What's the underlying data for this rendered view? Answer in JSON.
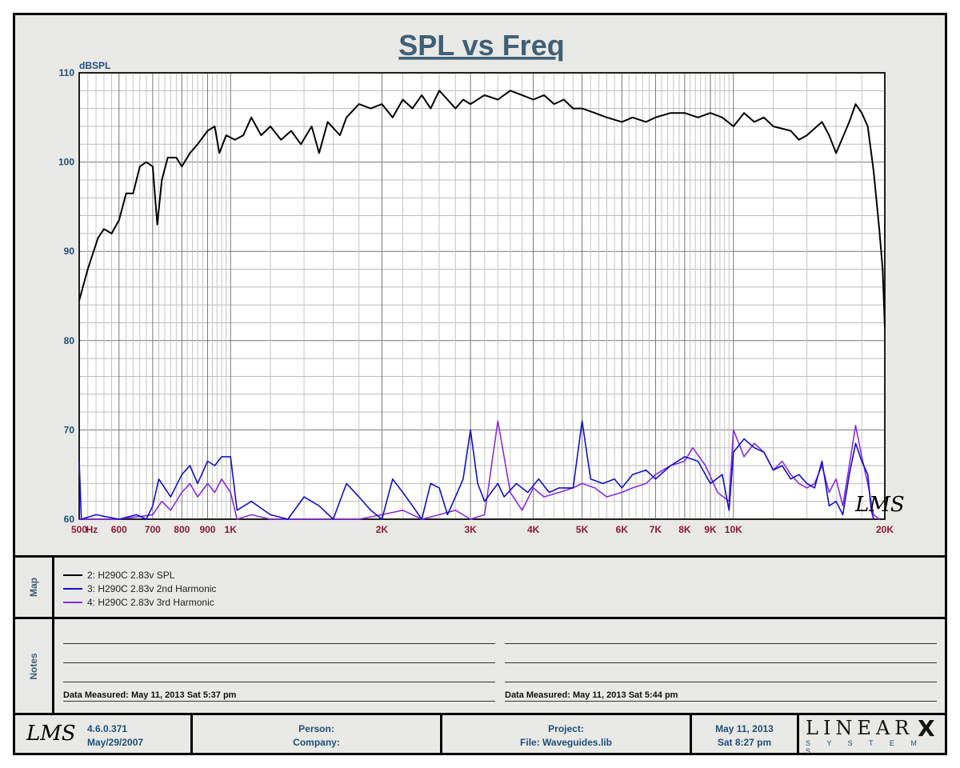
{
  "chart_data": {
    "type": "line",
    "title": "SPL vs Freq",
    "ylabel": "dBSPL",
    "xscale": "log",
    "xlim": [
      500,
      20000
    ],
    "ylim": [
      60,
      110
    ],
    "yticks": [
      60,
      70,
      80,
      90,
      100,
      110
    ],
    "xtick_labels": [
      {
        "f": 500,
        "label": "500"
      },
      {
        "f": 530,
        "label": "Hz"
      },
      {
        "f": 600,
        "label": "600"
      },
      {
        "f": 700,
        "label": "700"
      },
      {
        "f": 800,
        "label": "800"
      },
      {
        "f": 900,
        "label": "900"
      },
      {
        "f": 1000,
        "label": "1K"
      },
      {
        "f": 2000,
        "label": "2K"
      },
      {
        "f": 3000,
        "label": "3K"
      },
      {
        "f": 4000,
        "label": "4K"
      },
      {
        "f": 5000,
        "label": "5K"
      },
      {
        "f": 6000,
        "label": "6K"
      },
      {
        "f": 7000,
        "label": "7K"
      },
      {
        "f": 8000,
        "label": "8K"
      },
      {
        "f": 9000,
        "label": "9K"
      },
      {
        "f": 10000,
        "label": "10K"
      },
      {
        "f": 20000,
        "label": "20K"
      }
    ],
    "grid": true,
    "watermark": "LMS",
    "series": [
      {
        "name": "2: H290C 2.83v SPL",
        "color": "#000000",
        "points": [
          [
            500,
            84.5
          ],
          [
            520,
            88
          ],
          [
            545,
            91.5
          ],
          [
            560,
            92.5
          ],
          [
            580,
            92
          ],
          [
            600,
            93.5
          ],
          [
            620,
            96.5
          ],
          [
            640,
            96.5
          ],
          [
            660,
            99.5
          ],
          [
            680,
            100
          ],
          [
            700,
            99.5
          ],
          [
            715,
            93
          ],
          [
            730,
            98
          ],
          [
            750,
            100.5
          ],
          [
            780,
            100.5
          ],
          [
            800,
            99.5
          ],
          [
            830,
            101
          ],
          [
            860,
            102
          ],
          [
            900,
            103.5
          ],
          [
            930,
            104
          ],
          [
            950,
            101
          ],
          [
            980,
            103
          ],
          [
            1020,
            102.5
          ],
          [
            1060,
            103
          ],
          [
            1100,
            105
          ],
          [
            1150,
            103
          ],
          [
            1200,
            104
          ],
          [
            1260,
            102.5
          ],
          [
            1320,
            103.5
          ],
          [
            1380,
            102
          ],
          [
            1450,
            104
          ],
          [
            1500,
            101
          ],
          [
            1560,
            104.5
          ],
          [
            1650,
            103
          ],
          [
            1700,
            105
          ],
          [
            1800,
            106.5
          ],
          [
            1900,
            106
          ],
          [
            2000,
            106.5
          ],
          [
            2100,
            105
          ],
          [
            2200,
            107
          ],
          [
            2300,
            106
          ],
          [
            2400,
            107.5
          ],
          [
            2500,
            106
          ],
          [
            2600,
            108
          ],
          [
            2700,
            107
          ],
          [
            2800,
            106
          ],
          [
            2900,
            107
          ],
          [
            3000,
            106.5
          ],
          [
            3200,
            107.5
          ],
          [
            3400,
            107
          ],
          [
            3600,
            108
          ],
          [
            3800,
            107.5
          ],
          [
            4000,
            107
          ],
          [
            4200,
            107.5
          ],
          [
            4400,
            106.5
          ],
          [
            4600,
            107
          ],
          [
            4800,
            106
          ],
          [
            5000,
            106
          ],
          [
            5300,
            105.5
          ],
          [
            5600,
            105
          ],
          [
            6000,
            104.5
          ],
          [
            6300,
            105
          ],
          [
            6700,
            104.5
          ],
          [
            7000,
            105
          ],
          [
            7500,
            105.5
          ],
          [
            8000,
            105.5
          ],
          [
            8500,
            105
          ],
          [
            9000,
            105.5
          ],
          [
            9500,
            105
          ],
          [
            10000,
            104
          ],
          [
            10500,
            105.5
          ],
          [
            11000,
            104.5
          ],
          [
            11500,
            105
          ],
          [
            12000,
            104
          ],
          [
            13000,
            103.5
          ],
          [
            13500,
            102.5
          ],
          [
            14000,
            103
          ],
          [
            15000,
            104.5
          ],
          [
            15500,
            103
          ],
          [
            16000,
            101
          ],
          [
            17000,
            104.5
          ],
          [
            17500,
            106.5
          ],
          [
            18000,
            105.5
          ],
          [
            18500,
            104
          ],
          [
            19000,
            99
          ],
          [
            19500,
            92.5
          ],
          [
            19800,
            88
          ],
          [
            20000,
            81.5
          ]
        ]
      },
      {
        "name": "3: H290C 2.83v 2nd Harmonic",
        "color": "#1010d0",
        "points": [
          [
            500,
            66.5
          ],
          [
            505,
            60
          ],
          [
            540,
            60.5
          ],
          [
            600,
            60
          ],
          [
            650,
            60.5
          ],
          [
            680,
            60
          ],
          [
            700,
            61.5
          ],
          [
            720,
            64.5
          ],
          [
            760,
            62.5
          ],
          [
            800,
            65
          ],
          [
            830,
            66
          ],
          [
            860,
            64
          ],
          [
            900,
            66.5
          ],
          [
            930,
            66
          ],
          [
            960,
            67
          ],
          [
            1000,
            67
          ],
          [
            1030,
            61
          ],
          [
            1100,
            62
          ],
          [
            1200,
            60.5
          ],
          [
            1300,
            60
          ],
          [
            1400,
            62.5
          ],
          [
            1500,
            61.5
          ],
          [
            1600,
            60
          ],
          [
            1700,
            64
          ],
          [
            1800,
            62.5
          ],
          [
            1900,
            61
          ],
          [
            2000,
            60
          ],
          [
            2100,
            64.5
          ],
          [
            2200,
            63
          ],
          [
            2300,
            61.5
          ],
          [
            2400,
            60
          ],
          [
            2500,
            64
          ],
          [
            2600,
            63.5
          ],
          [
            2700,
            60.5
          ],
          [
            2800,
            62.5
          ],
          [
            2900,
            64.5
          ],
          [
            3000,
            70
          ],
          [
            3100,
            64
          ],
          [
            3200,
            62
          ],
          [
            3400,
            64
          ],
          [
            3500,
            62.5
          ],
          [
            3700,
            64
          ],
          [
            3900,
            63
          ],
          [
            4100,
            64.5
          ],
          [
            4300,
            63
          ],
          [
            4500,
            63.5
          ],
          [
            4800,
            63.5
          ],
          [
            5000,
            71
          ],
          [
            5200,
            64.5
          ],
          [
            5500,
            64
          ],
          [
            5800,
            64.5
          ],
          [
            6000,
            63.5
          ],
          [
            6300,
            65
          ],
          [
            6700,
            65.5
          ],
          [
            7000,
            64.5
          ],
          [
            7500,
            66
          ],
          [
            8000,
            67
          ],
          [
            8500,
            66.5
          ],
          [
            9000,
            64
          ],
          [
            9500,
            65
          ],
          [
            9800,
            61
          ],
          [
            10000,
            67.5
          ],
          [
            10500,
            69
          ],
          [
            11000,
            68
          ],
          [
            11500,
            67.5
          ],
          [
            12000,
            65.5
          ],
          [
            12500,
            66
          ],
          [
            13000,
            64.5
          ],
          [
            13500,
            65
          ],
          [
            14000,
            64
          ],
          [
            14500,
            63.5
          ],
          [
            15000,
            66.5
          ],
          [
            15500,
            61.5
          ],
          [
            16000,
            62
          ],
          [
            16500,
            60.5
          ],
          [
            17000,
            65
          ],
          [
            17500,
            68.5
          ],
          [
            18000,
            66.5
          ],
          [
            18500,
            65
          ],
          [
            18800,
            61
          ],
          [
            19000,
            60
          ]
        ]
      },
      {
        "name": "4: H290C 2.83v 3rd Harmonic",
        "color": "#8a2be2",
        "points": [
          [
            500,
            60
          ],
          [
            600,
            60
          ],
          [
            700,
            60.5
          ],
          [
            730,
            62
          ],
          [
            760,
            61
          ],
          [
            800,
            63
          ],
          [
            830,
            64
          ],
          [
            860,
            62.5
          ],
          [
            900,
            64
          ],
          [
            930,
            63
          ],
          [
            960,
            64.5
          ],
          [
            1000,
            63
          ],
          [
            1030,
            60
          ],
          [
            1100,
            60.5
          ],
          [
            1200,
            60
          ],
          [
            1400,
            60
          ],
          [
            1600,
            60
          ],
          [
            1800,
            60
          ],
          [
            2000,
            60.5
          ],
          [
            2200,
            61
          ],
          [
            2400,
            60
          ],
          [
            2600,
            60.5
          ],
          [
            2800,
            61
          ],
          [
            3000,
            60
          ],
          [
            3200,
            60.5
          ],
          [
            3400,
            71
          ],
          [
            3600,
            63
          ],
          [
            3800,
            61
          ],
          [
            4000,
            63.5
          ],
          [
            4200,
            62.5
          ],
          [
            4500,
            63
          ],
          [
            4800,
            63.5
          ],
          [
            5000,
            64
          ],
          [
            5300,
            63.5
          ],
          [
            5600,
            62.5
          ],
          [
            6000,
            63
          ],
          [
            6300,
            63.5
          ],
          [
            6700,
            64
          ],
          [
            7000,
            65
          ],
          [
            7500,
            66
          ],
          [
            8000,
            66.5
          ],
          [
            8300,
            68
          ],
          [
            8800,
            66
          ],
          [
            9300,
            63
          ],
          [
            9800,
            62
          ],
          [
            10000,
            70
          ],
          [
            10500,
            67
          ],
          [
            11000,
            68.5
          ],
          [
            11500,
            67.5
          ],
          [
            12000,
            65.5
          ],
          [
            12500,
            66.5
          ],
          [
            13000,
            65
          ],
          [
            13500,
            64
          ],
          [
            14000,
            63.5
          ],
          [
            14500,
            64
          ],
          [
            15000,
            66
          ],
          [
            15500,
            63
          ],
          [
            16000,
            64.5
          ],
          [
            16500,
            61.5
          ],
          [
            17000,
            66
          ],
          [
            17500,
            70.5
          ],
          [
            18000,
            67
          ],
          [
            18500,
            64
          ],
          [
            19000,
            60.5
          ],
          [
            19500,
            60
          ]
        ]
      }
    ]
  },
  "map": {
    "label": "Map",
    "entries": [
      {
        "text": "2: H290C 2.83v SPL",
        "color": "#000000"
      },
      {
        "text": "3: H290C 2.83v 2nd Harmonic",
        "color": "#1010d0"
      },
      {
        "text": "4: H290C 2.83v 3rd Harmonic",
        "color": "#8a2be2"
      }
    ]
  },
  "notes": {
    "label": "Notes",
    "left_measured": "Data Measured: May 11, 2013  Sat  5:37 pm",
    "right_measured": "Data Measured: May 11, 2013  Sat  5:44 pm"
  },
  "footer": {
    "logo": "LMS",
    "version": "4.6.0.371",
    "version_date": "May/29/2007",
    "person": "Person:",
    "company": "Company:",
    "project": "Project:",
    "file": "File: Waveguides.lib",
    "date": "May 11, 2013",
    "time": "Sat  8:27 pm",
    "brand_main": "LINEAR",
    "brand_x": "X",
    "brand_sub": "S Y S T E M S"
  }
}
